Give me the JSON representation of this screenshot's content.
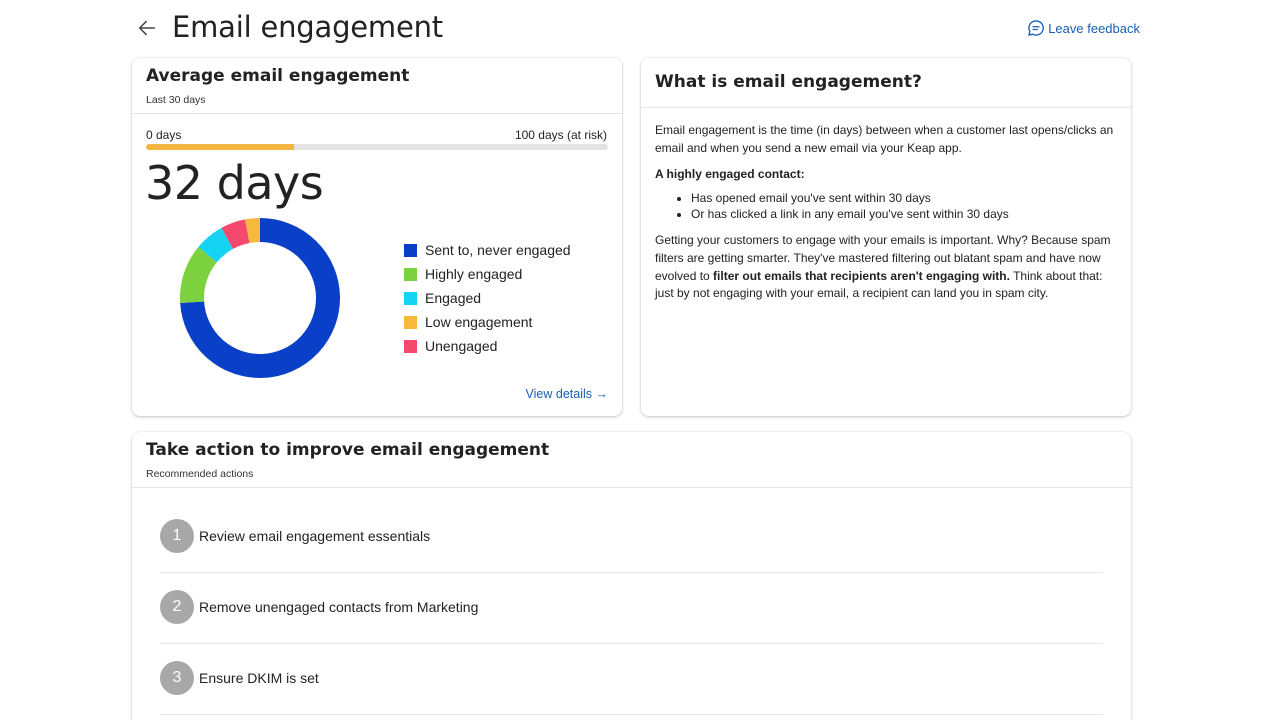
{
  "header": {
    "title": "Email engagement",
    "feedback_label": "Leave feedback"
  },
  "average": {
    "title": "Average email engagement",
    "subtitle": "Last 30 days",
    "range_min_label": "0 days",
    "range_max_label": "100 days (at risk)",
    "progress_fraction": 0.32,
    "value_label": "32 days",
    "view_details_label": "View details →",
    "legend": [
      {
        "label": "Sent to, never engaged",
        "color": "#0a3fc8"
      },
      {
        "label": "Highly engaged",
        "color": "#7cd23e"
      },
      {
        "label": "Engaged",
        "color": "#15d3f2"
      },
      {
        "label": "Low engagement",
        "color": "#f7b93c"
      },
      {
        "label": "Unengaged",
        "color": "#f4496d"
      }
    ]
  },
  "chart_data": {
    "type": "pie",
    "categories": [
      "Sent to, never engaged",
      "Highly engaged",
      "Engaged",
      "Low engagement",
      "Unengaged"
    ],
    "values": [
      74,
      12,
      6,
      3,
      5
    ],
    "order": [
      "Sent to, never engaged",
      "Highly engaged",
      "Engaged",
      "Unengaged",
      "Low engagement"
    ],
    "colors": [
      "#0a3fc8",
      "#7cd23e",
      "#15d3f2",
      "#f7b93c",
      "#f4496d"
    ],
    "legend_position": "right"
  },
  "what": {
    "title": "What is email engagement?",
    "para1": "Email engagement is the time (in days) between when a customer last opens/clicks an email and when you send a new email via your Keap app.",
    "heading": "A highly engaged contact:",
    "bullets": [
      "Has opened email you've sent within 30 days",
      "Or has clicked a link in any email you've sent within 30 days"
    ],
    "para2_start": "Getting your customers to engage with your emails is important. Why? Because spam filters are getting smarter. They've mastered filtering out blatant spam and have now evolved to ",
    "para2_bold": "filter out emails that recipients aren't engaging with.",
    "para2_end": " Think about that: just by not engaging with your email, a recipient can land you in spam city."
  },
  "actions": {
    "title": "Take action to improve email engagement",
    "subtitle": "Recommended actions",
    "items": [
      {
        "num": "1",
        "label": "Review email engagement essentials"
      },
      {
        "num": "2",
        "label": "Remove unengaged contacts from Marketing"
      },
      {
        "num": "3",
        "label": "Ensure DKIM is set"
      }
    ]
  }
}
